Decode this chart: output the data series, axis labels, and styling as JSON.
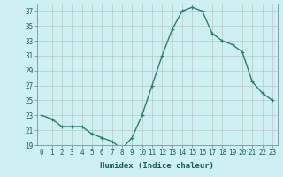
{
  "x": [
    0,
    1,
    2,
    3,
    4,
    5,
    6,
    7,
    8,
    9,
    10,
    11,
    12,
    13,
    14,
    15,
    16,
    17,
    18,
    19,
    20,
    21,
    22,
    23
  ],
  "y": [
    23,
    22.5,
    21.5,
    21.5,
    21.5,
    20.5,
    20.0,
    19.5,
    18.5,
    20.0,
    23.0,
    27.0,
    31.0,
    34.5,
    37.0,
    37.5,
    37.0,
    34.0,
    33.0,
    32.5,
    31.5,
    27.5,
    26.0,
    25.0
  ],
  "line_color": "#2e7d6e",
  "marker": "+",
  "marker_size": 3,
  "bg_color": "#cff0f0",
  "grid_color": "#b8c8c8",
  "xlabel": "Humidex (Indice chaleur)",
  "ylim": [
    19,
    38
  ],
  "xlim": [
    -0.5,
    23.5
  ],
  "yticks": [
    19,
    21,
    23,
    25,
    27,
    29,
    31,
    33,
    35,
    37
  ],
  "xticks": [
    0,
    1,
    2,
    3,
    4,
    5,
    6,
    7,
    8,
    9,
    10,
    11,
    12,
    13,
    14,
    15,
    16,
    17,
    18,
    19,
    20,
    21,
    22,
    23
  ],
  "tick_fontsize": 5.5,
  "xlabel_fontsize": 6.5,
  "line_width": 1.0
}
